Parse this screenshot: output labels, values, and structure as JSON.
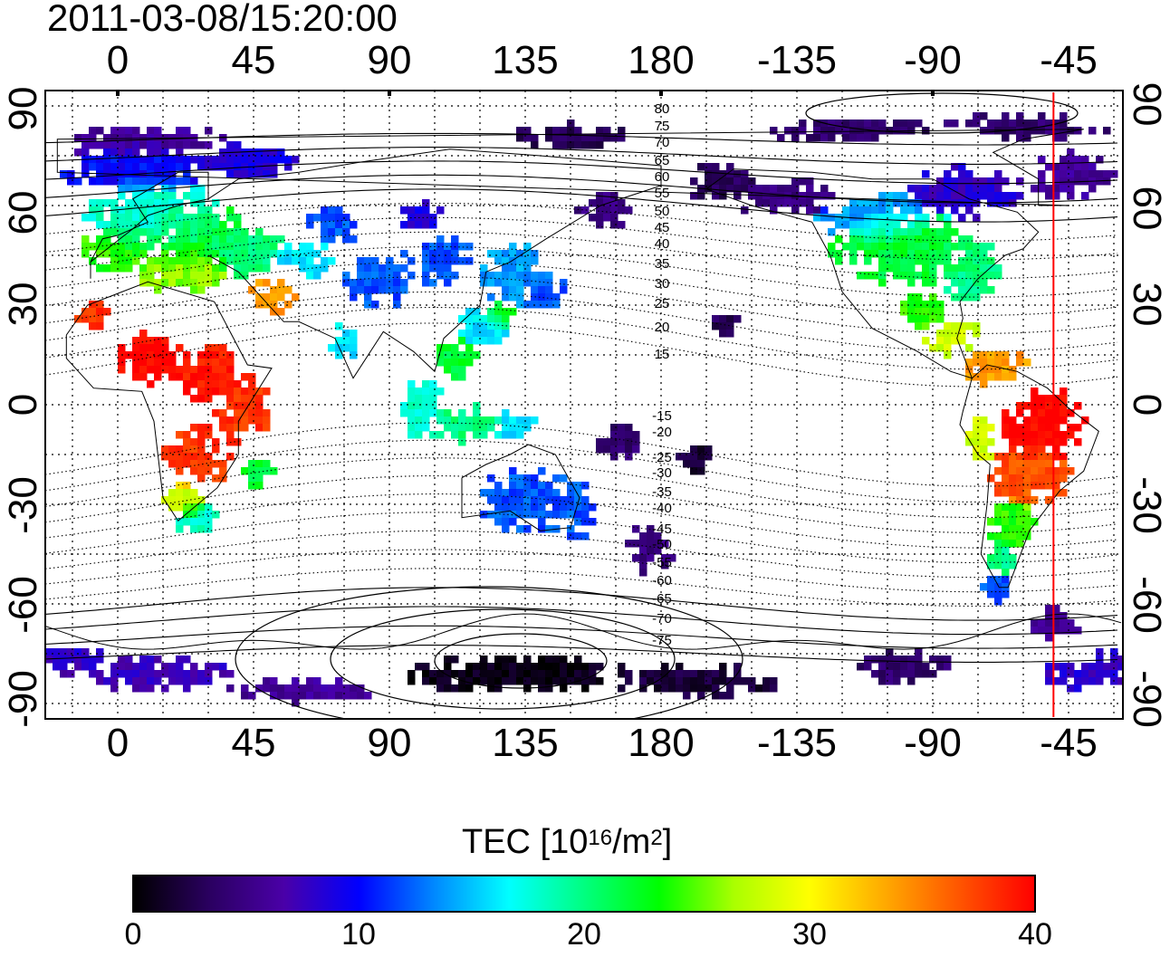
{
  "timestamp": "2011-03-08/15:20:00",
  "lon_labels_top": [
    "0",
    "45",
    "90",
    "135",
    "180",
    "-135",
    "-90",
    "-45"
  ],
  "lon_labels_bottom": [
    "0",
    "45",
    "90",
    "135",
    "180",
    "-135",
    "-90",
    "-45"
  ],
  "lat_labels_left": [
    "90",
    "60",
    "30",
    "0",
    "-30",
    "-60",
    "-90"
  ],
  "lat_labels_right": [
    "90",
    "60",
    "30",
    "0",
    "-30",
    "-60",
    "-90"
  ],
  "magnetic_lat_labels_north": [
    "80",
    "75",
    "70",
    "65",
    "60",
    "55",
    "50",
    "45",
    "40",
    "35",
    "30",
    "25",
    "20",
    "15"
  ],
  "magnetic_lat_labels_south": [
    "-15",
    "-20",
    "-25",
    "-30",
    "-35",
    "-40",
    "-45",
    "-50",
    "-55",
    "-60",
    "-65",
    "-70",
    "-75"
  ],
  "colorbar": {
    "title_prefix": "TEC  [10",
    "title_exp1": "16",
    "title_mid": "/m",
    "title_exp2": "2",
    "title_suffix": "]",
    "ticks": [
      "0",
      "10",
      "20",
      "30",
      "40"
    ],
    "min": 0,
    "max": 40
  },
  "colors": {
    "scale": [
      "#000000",
      "#2a0060",
      "#4a00a8",
      "#0000ff",
      "#0088ff",
      "#00ffff",
      "#00ff80",
      "#00ff00",
      "#aaff00",
      "#ffff00",
      "#ffaa00",
      "#ff5500",
      "#ff0000"
    ],
    "frame": "#000000",
    "marker_line": "#ff0000"
  },
  "terminator_longitude": -50
}
